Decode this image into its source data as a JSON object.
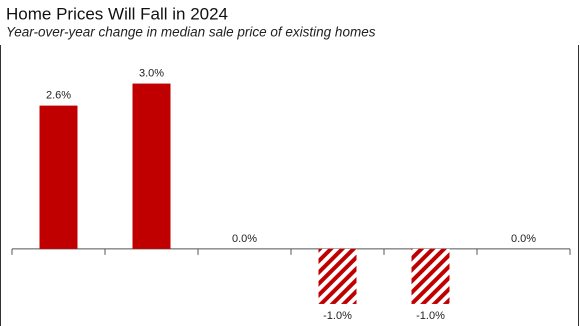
{
  "chart_data": {
    "type": "bar",
    "title": "Home Prices Will Fall in 2024",
    "subtitle": "Year-over-year change in median sale price of existing homes",
    "categories": [
      null,
      null,
      null,
      null,
      null,
      null
    ],
    "values": [
      2.6,
      3.0,
      0.0,
      -1.0,
      -1.0,
      0.0
    ],
    "value_labels": [
      "2.6%",
      "3.0%",
      "0.0%",
      "-1.0%",
      "-1.0%",
      "0.0%"
    ],
    "hatched": [
      false,
      false,
      false,
      true,
      true,
      false
    ],
    "color": "#c00000",
    "ylim": [
      -1.4,
      3.7
    ],
    "grid": false
  }
}
